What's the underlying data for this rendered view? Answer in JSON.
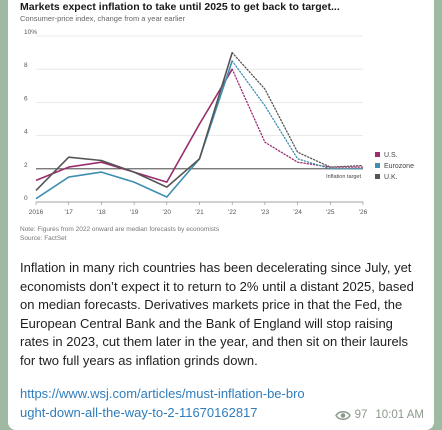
{
  "chart_data": {
    "type": "line",
    "title": "Markets expect inflation to take until 2025 to get back to target...",
    "subtitle": "Consumer-price index, change from a year earlier",
    "x": [
      "2016",
      "'17",
      "'18",
      "'19",
      "'20",
      "'21",
      "'22",
      "'23",
      "'24",
      "'25",
      "'26"
    ],
    "x_values": [
      2016,
      2017,
      2018,
      2019,
      2020,
      2021,
      2022,
      2023,
      2024,
      2025,
      2026
    ],
    "ylim": [
      0,
      10
    ],
    "yticks": [
      "0",
      "2",
      "4",
      "6",
      "8",
      "10%"
    ],
    "ytick_values": [
      0,
      2,
      4,
      6,
      8,
      10
    ],
    "forecast_start": 2022,
    "target": {
      "value": 2,
      "label": "Inflation target"
    },
    "series": [
      {
        "name": "U.S.",
        "color": "#9b2d6f",
        "x": [
          2016,
          2017,
          2018,
          2019,
          2020,
          2021,
          2022,
          2023,
          2024,
          2025,
          2026
        ],
        "values": [
          1.3,
          2.1,
          2.4,
          1.8,
          1.2,
          4.7,
          8.0,
          3.6,
          2.4,
          2.1,
          2.1
        ]
      },
      {
        "name": "Eurozone",
        "color": "#3f8fb0",
        "x": [
          2016,
          2017,
          2018,
          2019,
          2020,
          2021,
          2022,
          2023,
          2024,
          2025,
          2026
        ],
        "values": [
          0.2,
          1.5,
          1.8,
          1.2,
          0.3,
          2.6,
          8.5,
          5.8,
          2.6,
          2.0,
          2.0
        ]
      },
      {
        "name": "U.K.",
        "color": "#555555",
        "x": [
          2016,
          2017,
          2018,
          2019,
          2020,
          2021,
          2022,
          2023,
          2024,
          2025,
          2026
        ],
        "values": [
          0.7,
          2.7,
          2.5,
          1.8,
          0.9,
          2.6,
          9.0,
          6.8,
          3.0,
          2.1,
          2.2
        ]
      }
    ],
    "grid": true,
    "legend_placement": "right"
  },
  "chart_note_line1": "Note: Figures from 2022 onward are median forecasts by economists",
  "chart_note_line2": "Source: FactSet",
  "body_text": "Inflation in many rich countries has been decelerating since July, yet economists don’t expect it to return to 2% until a distant 2025, based on median forecasts. Derivatives markets price in that the Fed, the European Central Bank and the Bank of England will stop raising rates in 2023, cut them later in the year, and then sit on their laurels for two full years as inflation grinds down.",
  "link_text": "https://www.wsj.com/articles/must-inflation-be-brought-down-all-the-way-to-2-11670162817",
  "views": "97",
  "time": "10:01 AM",
  "icons": {
    "views": "eye-icon"
  }
}
